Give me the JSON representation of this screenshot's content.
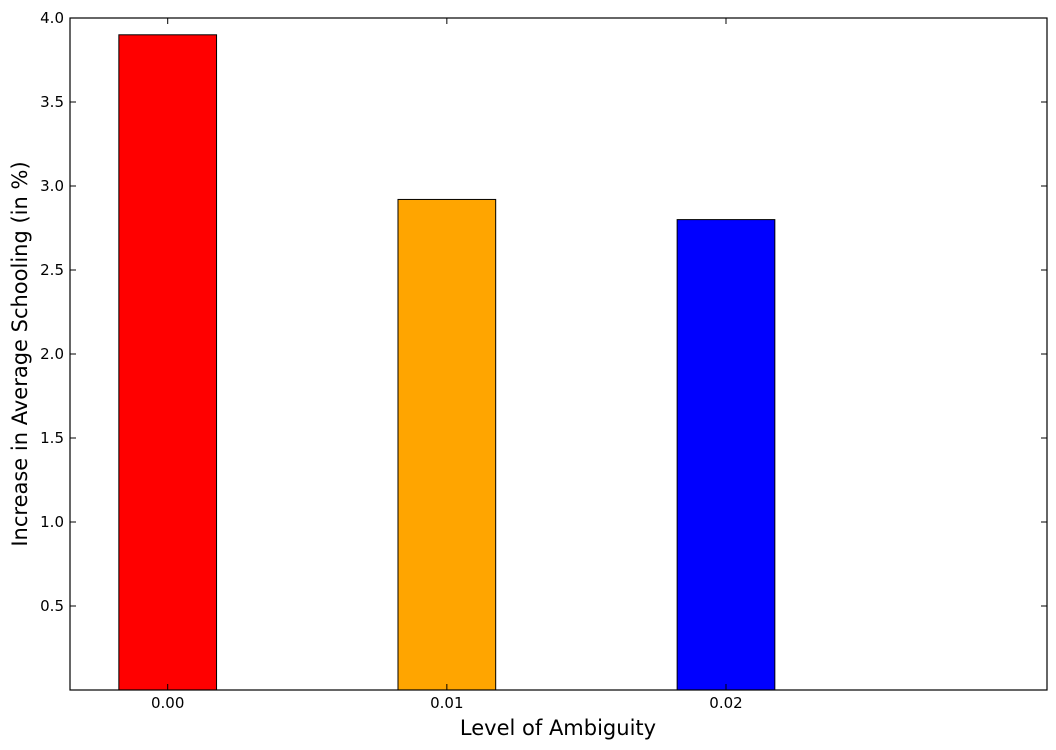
{
  "chart_data": {
    "type": "bar",
    "title": "",
    "xlabel": "Level of Ambiguity",
    "ylabel": "Increase in Average Schooling (in %)",
    "categories": [
      "0.00",
      "0.01",
      "0.02"
    ],
    "values": [
      3.9,
      2.92,
      2.8
    ],
    "bar_colors": [
      "#ff0000",
      "#ffa500",
      "#0000ff"
    ],
    "ylim": [
      0,
      4.0
    ],
    "yticks": [
      "0.5",
      "1.0",
      "1.5",
      "2.0",
      "2.5",
      "3.0",
      "3.5",
      "4.0"
    ],
    "ytick_values": [
      0.5,
      1.0,
      1.5,
      2.0,
      2.5,
      3.0,
      3.5,
      4.0
    ],
    "grid": false,
    "legend": "none"
  }
}
